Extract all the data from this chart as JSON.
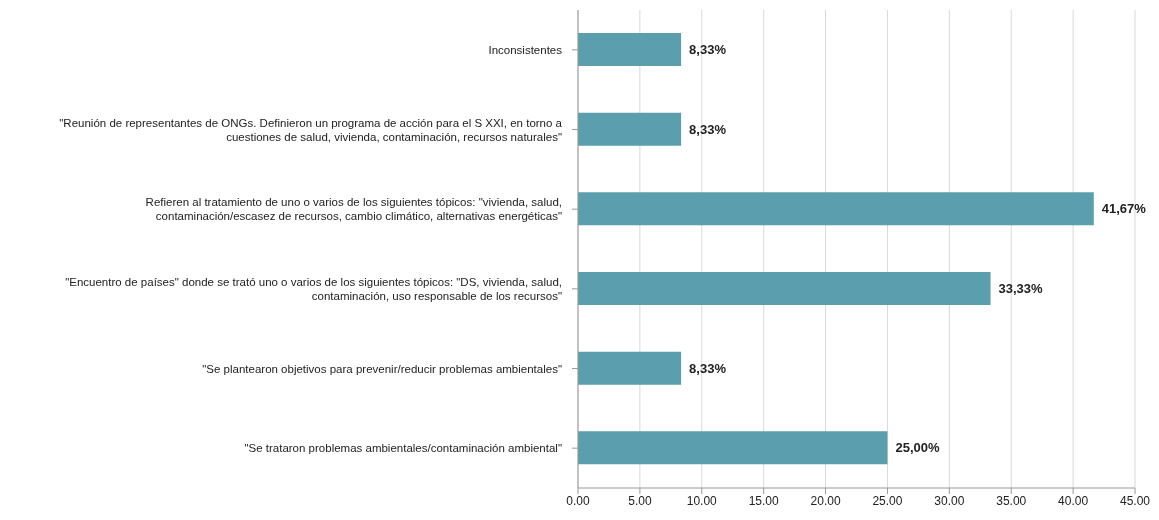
{
  "chart_data": {
    "type": "bar",
    "orientation": "horizontal",
    "categories": [
      "Inconsistentes",
      "\"Reunión de representantes de ONGs. Definieron un programa de acción para el S XXI, en torno a cuestiones de salud, vivienda, contaminación, recursos naturales\"",
      "Refieren al tratamiento de uno o varios de los siguientes tópicos: \"vivienda, salud, contaminación/escasez de recursos, cambio climático, alternativas energéticas\"",
      "\"Encuentro de países\" donde se trató uno o varios de los siguientes tópicos: \"DS, vivienda, salud, contaminación, uso responsable de los recursos\"",
      "\"Se plantearon objetivos para prevenir/reducir problemas ambientales\"",
      "\"Se trataron problemas ambientales/contaminación ambiental\""
    ],
    "values": [
      8.33,
      8.33,
      41.67,
      33.33,
      8.33,
      25.0
    ],
    "value_labels": [
      "8,33%",
      "8,33%",
      "41,67%",
      "33,33%",
      "8,33%",
      "25,00%"
    ],
    "color": "#5b9ead",
    "xlim": [
      0,
      45
    ],
    "xticks": [
      {
        "value": 0,
        "label": "0.00"
      },
      {
        "value": 5,
        "label": "5.00"
      },
      {
        "value": 10,
        "label": "10.00"
      },
      {
        "value": 15,
        "label": "15.00"
      },
      {
        "value": 20,
        "label": "20.00"
      },
      {
        "value": 25,
        "label": "25.00"
      },
      {
        "value": 30,
        "label": "30.00"
      },
      {
        "value": 35,
        "label": "35.00"
      },
      {
        "value": 40,
        "label": "40.00"
      },
      {
        "value": 45,
        "label": "45.00"
      }
    ],
    "grid": "x"
  }
}
